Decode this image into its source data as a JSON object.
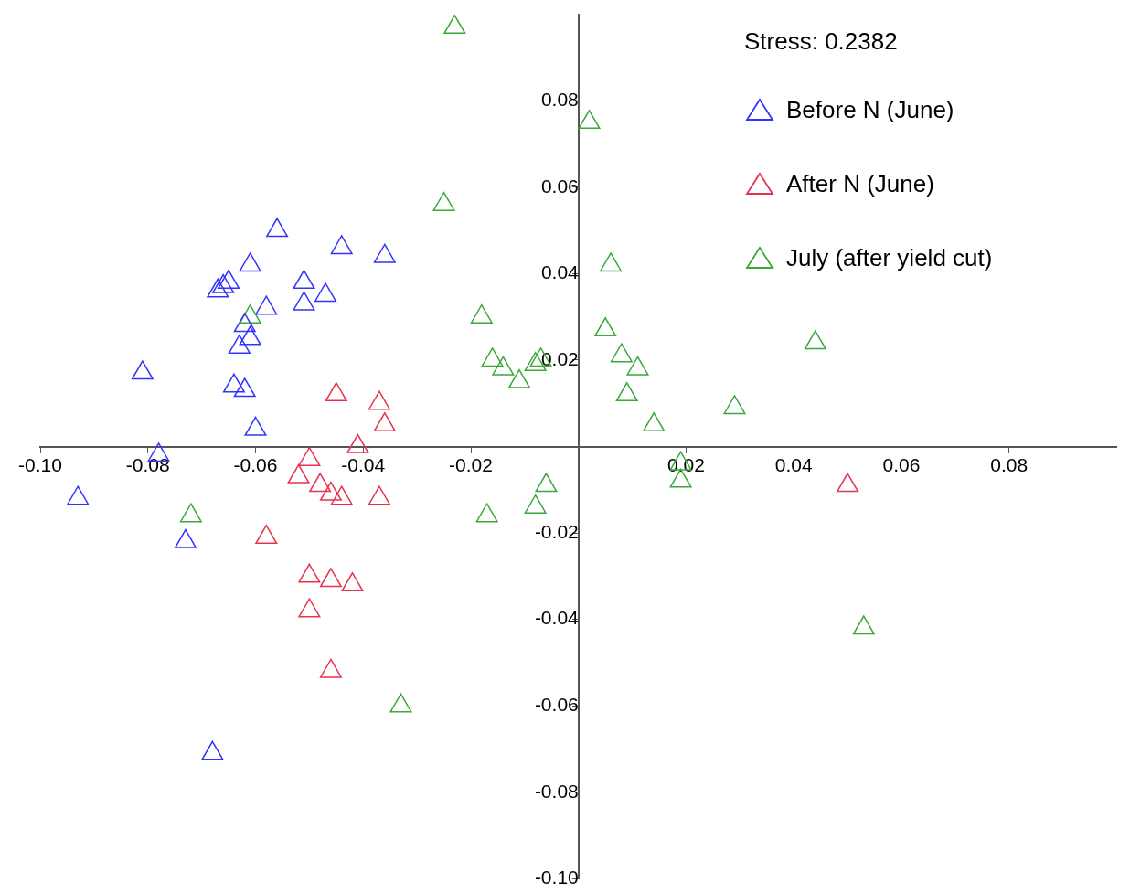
{
  "chart_data": {
    "type": "scatter",
    "marker": "triangle",
    "grid": false,
    "legend": "top right",
    "annotations": [
      "Stress: 0.2382"
    ],
    "xlim": [
      -0.1,
      0.1
    ],
    "ylim": [
      -0.1,
      0.1
    ],
    "xticks": [
      {
        "value": -0.1,
        "label": "-0.10"
      },
      {
        "value": -0.08,
        "label": "-0.08"
      },
      {
        "value": -0.06,
        "label": "-0.06"
      },
      {
        "value": -0.04,
        "label": "-0.04"
      },
      {
        "value": -0.02,
        "label": "-0.02"
      },
      {
        "value": 0.02,
        "label": "0.02"
      },
      {
        "value": 0.04,
        "label": "0.04"
      },
      {
        "value": 0.06,
        "label": "0.06"
      },
      {
        "value": 0.08,
        "label": "0.08"
      }
    ],
    "yticks": [
      {
        "value": -0.1,
        "label": "-0.10"
      },
      {
        "value": -0.08,
        "label": "-0.08"
      },
      {
        "value": -0.06,
        "label": "-0.06"
      },
      {
        "value": -0.04,
        "label": "-0.04"
      },
      {
        "value": -0.02,
        "label": "-0.02"
      },
      {
        "value": 0.02,
        "label": "0.02"
      },
      {
        "value": 0.04,
        "label": "0.04"
      },
      {
        "value": 0.06,
        "label": "0.06"
      },
      {
        "value": 0.08,
        "label": "0.08"
      }
    ],
    "series": [
      {
        "name": "Before N (June)",
        "color": "#3333ff",
        "x": [
          -0.056,
          -0.044,
          -0.036,
          -0.061,
          -0.066,
          -0.065,
          -0.067,
          -0.051,
          -0.047,
          -0.051,
          -0.058,
          -0.062,
          -0.061,
          -0.063,
          -0.081,
          -0.064,
          -0.062,
          -0.06,
          -0.078,
          -0.093,
          -0.073,
          -0.068
        ],
        "values": [
          0.05,
          0.046,
          0.044,
          0.042,
          0.037,
          0.038,
          0.036,
          0.038,
          0.035,
          0.033,
          0.032,
          0.028,
          0.025,
          0.023,
          0.017,
          0.014,
          0.013,
          0.004,
          -0.002,
          -0.012,
          -0.022,
          -0.071
        ]
      },
      {
        "name": "After N (June)",
        "color": "#e8334f",
        "x": [
          -0.045,
          -0.037,
          -0.036,
          -0.041,
          -0.05,
          -0.052,
          -0.048,
          -0.046,
          -0.044,
          -0.037,
          -0.058,
          -0.05,
          -0.046,
          -0.042,
          -0.05,
          -0.046,
          0.05
        ],
        "values": [
          0.012,
          0.01,
          0.005,
          0,
          -0.003,
          -0.007,
          -0.009,
          -0.011,
          -0.012,
          -0.012,
          -0.021,
          -0.03,
          -0.031,
          -0.032,
          -0.038,
          -0.052,
          -0.009
        ]
      },
      {
        "name": "July (after yield cut)",
        "color": "#3aa83a",
        "x": [
          -0.023,
          0.002,
          -0.025,
          0.006,
          -0.061,
          -0.018,
          0.005,
          0.008,
          -0.016,
          -0.014,
          -0.011,
          -0.007,
          -0.008,
          0.011,
          0.009,
          0.044,
          0.014,
          0.029,
          0.019,
          0.019,
          -0.006,
          -0.008,
          -0.017,
          -0.072,
          0.053,
          -0.033
        ],
        "values": [
          0.097,
          0.075,
          0.056,
          0.042,
          0.03,
          0.03,
          0.027,
          0.021,
          0.02,
          0.018,
          0.015,
          0.02,
          0.019,
          0.018,
          0.012,
          0.024,
          0.005,
          0.009,
          -0.004,
          -0.008,
          -0.009,
          -0.014,
          -0.016,
          -0.016,
          -0.042,
          -0.06
        ]
      }
    ]
  }
}
